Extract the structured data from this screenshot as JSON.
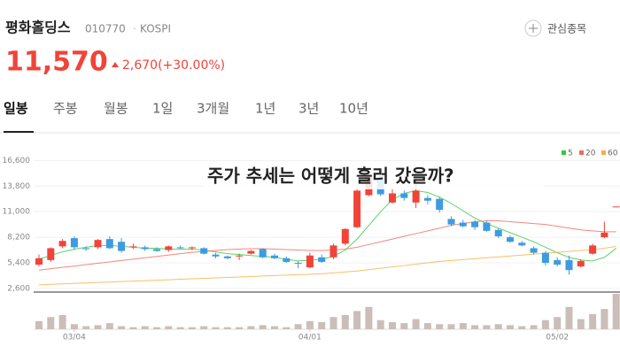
{
  "header": {
    "name": "평화홀딩스",
    "code": "010770",
    "market": "KOSPI",
    "watch_button": "관심종목",
    "price": "11,570",
    "change": "2,670(+30.00%)"
  },
  "tabs": [
    "일봉",
    "주봉",
    "월봉",
    "1일",
    "3개월",
    "1년",
    "3년",
    "10년"
  ],
  "chart_data": {
    "type": "candlestick",
    "title": "주가 추세는 어떻게 흘러 갔을까?",
    "categories": [
      null,
      null,
      null,
      "03/04",
      null,
      null,
      null,
      null,
      null,
      null,
      null,
      null,
      null,
      null,
      null,
      null,
      null,
      null,
      null,
      null,
      null,
      null,
      null,
      "04/01",
      null,
      null,
      null,
      null,
      null,
      null,
      null,
      null,
      null,
      null,
      null,
      null,
      null,
      null,
      null,
      null,
      null,
      null,
      null,
      null,
      "05/02",
      null,
      null,
      null,
      null,
      null
    ],
    "open": [
      5200,
      5700,
      7200,
      8100,
      7000,
      7100,
      8000,
      7700,
      7200,
      7100,
      6900,
      6800,
      7100,
      7000,
      7000,
      6300,
      6100,
      6100,
      6400,
      6900,
      6200,
      5900,
      5400,
      4900,
      6000,
      6000,
      7500,
      9300,
      12800,
      14900,
      12000,
      13000,
      12000,
      12500,
      12400,
      10200,
      9800,
      9900,
      9800,
      9000,
      8200,
      7600,
      7000,
      6500,
      5700,
      5700,
      5000,
      6400,
      8200,
      11570
    ],
    "high": [
      6300,
      7100,
      8000,
      8300,
      7200,
      8000,
      8300,
      8100,
      7500,
      7300,
      7100,
      7300,
      7300,
      7200,
      7100,
      6500,
      6200,
      6400,
      6800,
      7000,
      6400,
      6100,
      5600,
      6500,
      6300,
      7500,
      9200,
      13500,
      15300,
      15300,
      13500,
      13300,
      15200,
      12800,
      12600,
      10500,
      10100,
      10100,
      10000,
      9200,
      8400,
      7800,
      7200,
      6700,
      6000,
      6200,
      5800,
      7500,
      9900,
      11570
    ],
    "low": [
      5000,
      5500,
      7000,
      6800,
      6700,
      6900,
      6900,
      6500,
      6900,
      6700,
      6600,
      6600,
      6900,
      6800,
      6300,
      5900,
      5800,
      5700,
      6300,
      5900,
      5800,
      5400,
      4800,
      4800,
      5400,
      5800,
      7300,
      9200,
      12700,
      12700,
      11900,
      12200,
      11400,
      11800,
      10900,
      9400,
      9300,
      9000,
      8800,
      8100,
      7600,
      7200,
      6300,
      5100,
      5000,
      4100,
      4900,
      6300,
      8100,
      11570
    ],
    "close": [
      5900,
      7000,
      7800,
      7100,
      6900,
      7900,
      7000,
      6700,
      7200,
      6900,
      6700,
      7200,
      7000,
      7100,
      6400,
      6100,
      5900,
      6200,
      6700,
      6000,
      5900,
      5500,
      5300,
      6200,
      5500,
      7300,
      9100,
      13300,
      15000,
      12900,
      13000,
      12500,
      13300,
      12200,
      11200,
      9600,
      9400,
      9300,
      8900,
      8300,
      7700,
      7300,
      6500,
      5400,
      5200,
      4600,
      5600,
      7300,
      8700,
      11570
    ],
    "volume": [
      8,
      12,
      14,
      5,
      3,
      4,
      6,
      3,
      2,
      3,
      2,
      3,
      2,
      2,
      3,
      2,
      2,
      2,
      3,
      4,
      3,
      2,
      5,
      8,
      7,
      12,
      14,
      18,
      22,
      9,
      7,
      6,
      10,
      6,
      5,
      5,
      6,
      4,
      4,
      5,
      4,
      3,
      4,
      9,
      12,
      22,
      10,
      15,
      20,
      35
    ],
    "series": [
      {
        "name": "5",
        "color": "#2ecc40",
        "values": [
          5800,
          6200,
          6600,
          6900,
          7100,
          7300,
          7300,
          7200,
          7100,
          7000,
          7000,
          6900,
          6900,
          6900,
          6800,
          6600,
          6400,
          6300,
          6200,
          6100,
          6000,
          5800,
          5600,
          5700,
          5800,
          6100,
          6800,
          8000,
          9500,
          11000,
          12300,
          13000,
          13300,
          13100,
          12600,
          11900,
          11100,
          10300,
          9700,
          9200,
          8700,
          8200,
          7700,
          7100,
          6500,
          6000,
          5700,
          5600,
          6000,
          7000
        ]
      },
      {
        "name": "20",
        "color": "#f06a5a",
        "values": [
          4600,
          4750,
          4900,
          5050,
          5200,
          5350,
          5500,
          5650,
          5800,
          5950,
          6100,
          6250,
          6400,
          6550,
          6650,
          6750,
          6850,
          6900,
          6950,
          6950,
          6900,
          6850,
          6800,
          6750,
          6750,
          6800,
          6900,
          7100,
          7400,
          7700,
          8000,
          8300,
          8600,
          8900,
          9200,
          9500,
          9700,
          9900,
          10000,
          10000,
          9900,
          9800,
          9700,
          9600,
          9400,
          9200,
          9000,
          8900,
          8800,
          8800
        ]
      },
      {
        "name": "60",
        "color": "#f5b041",
        "values": [
          3000,
          3050,
          3100,
          3150,
          3200,
          3250,
          3300,
          3350,
          3400,
          3450,
          3500,
          3550,
          3600,
          3650,
          3700,
          3750,
          3800,
          3850,
          3900,
          3950,
          4000,
          4050,
          4100,
          4150,
          4200,
          4300,
          4400,
          4500,
          4650,
          4800,
          4950,
          5100,
          5250,
          5400,
          5550,
          5650,
          5750,
          5850,
          5950,
          6050,
          6150,
          6250,
          6350,
          6450,
          6550,
          6650,
          6750,
          6850,
          7000,
          7200
        ]
      }
    ],
    "up_color": "#f04438",
    "down_color": "#3d9be0",
    "volume_color": "#cbbdb8",
    "ylim": [
      2200,
      17700
    ],
    "yticks": [
      {
        "value": 2600,
        "label": "2,600"
      },
      {
        "value": 5400,
        "label": "5,400"
      },
      {
        "value": 8200,
        "label": "8,200"
      },
      {
        "value": 11000,
        "label": "11,000"
      },
      {
        "value": 13800,
        "label": "13,800"
      },
      {
        "value": 16600,
        "label": "16,600"
      }
    ]
  }
}
